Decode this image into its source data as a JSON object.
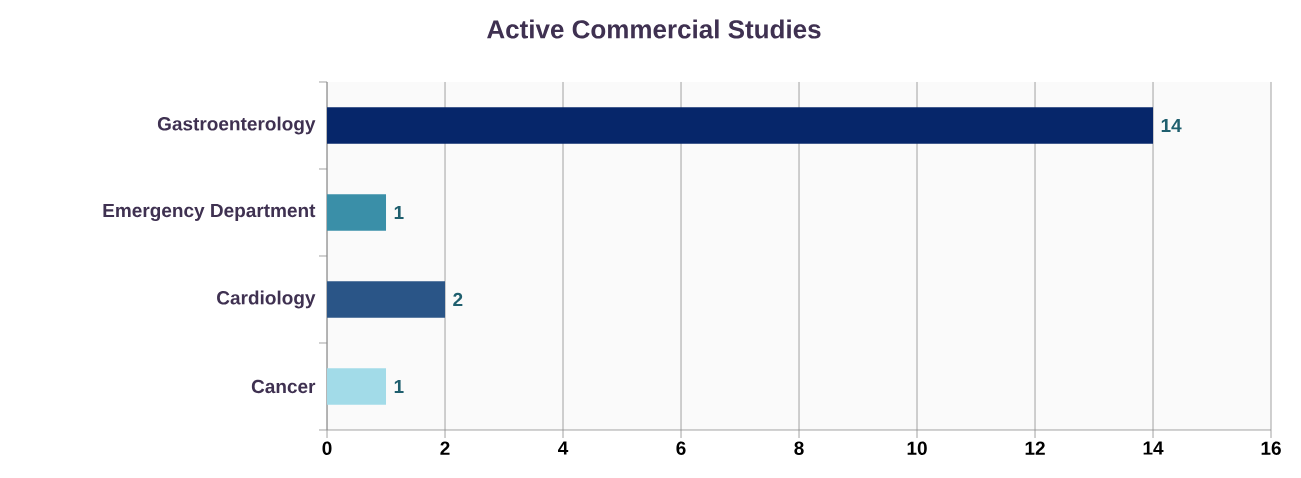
{
  "chart_data": {
    "type": "bar",
    "orientation": "horizontal",
    "title": "Active Commercial Studies",
    "categories": [
      "Gastroenterology",
      "Emergency Department",
      "Cardiology",
      "Cancer"
    ],
    "values": [
      14,
      1,
      2,
      1
    ],
    "colors": [
      "#06266a",
      "#3a8fa8",
      "#2a5587",
      "#a2dbe8"
    ],
    "xlim": [
      0,
      16
    ],
    "xticks": [
      0,
      2,
      4,
      6,
      8,
      10,
      12,
      14,
      16
    ],
    "grid": "x",
    "data_labels": true
  }
}
